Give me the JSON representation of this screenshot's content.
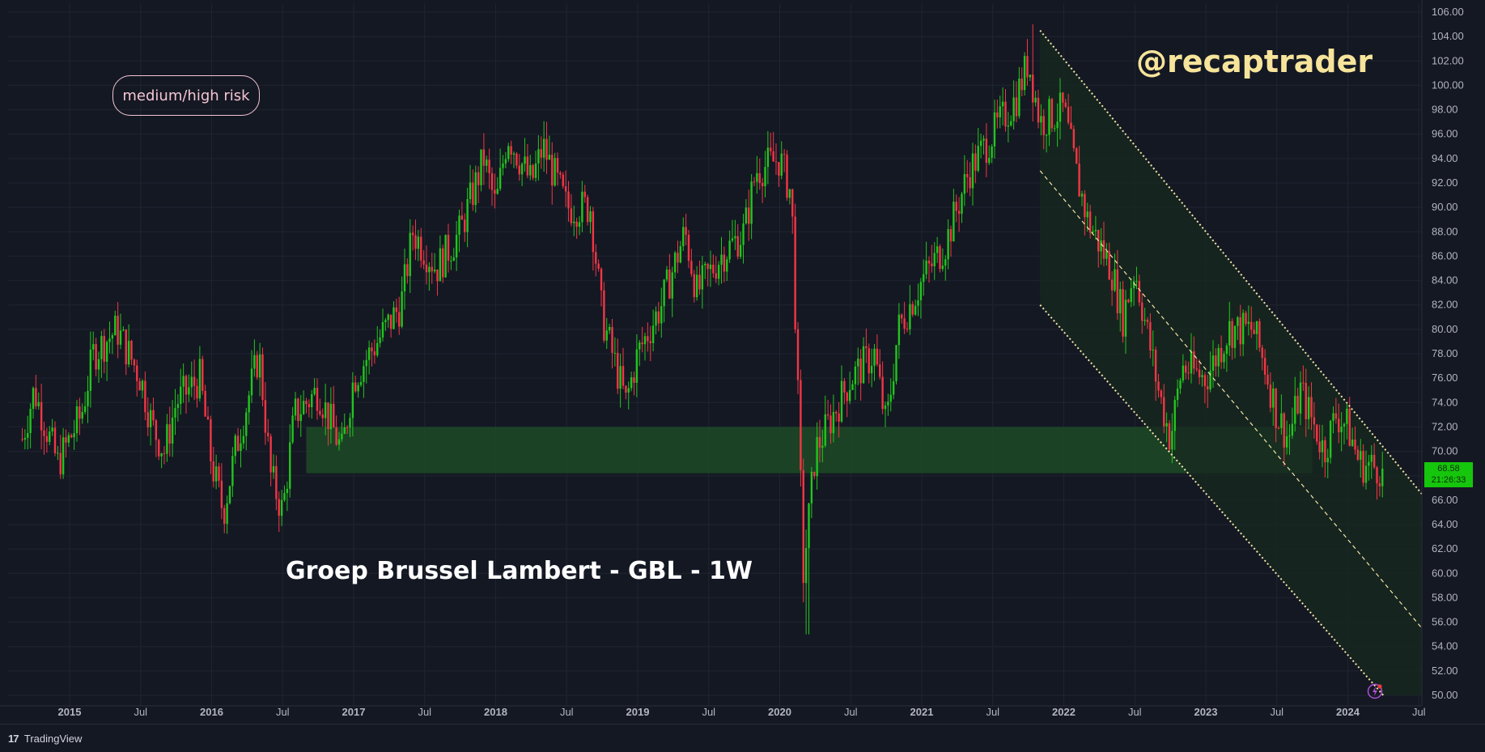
{
  "chart_data": {
    "type": "candlestick",
    "title": "Groep Brussel Lambert - GBL - 1W",
    "symbol": "GBL",
    "interval": "1W",
    "xlabel": "",
    "ylabel": "",
    "ylim": [
      50,
      106
    ],
    "xlim": [
      "2014-09",
      "2024-07"
    ],
    "y_ticks": [
      "106.00",
      "104.00",
      "102.00",
      "100.00",
      "98.00",
      "96.00",
      "94.00",
      "92.00",
      "90.00",
      "88.00",
      "86.00",
      "84.00",
      "82.00",
      "80.00",
      "78.00",
      "76.00",
      "74.00",
      "72.00",
      "70.00",
      "68.00",
      "66.00",
      "64.00",
      "62.00",
      "60.00",
      "58.00",
      "56.00",
      "54.00",
      "52.00",
      "50.00"
    ],
    "x_ticks": [
      {
        "label": "2015",
        "date": "2015-01",
        "bold": true
      },
      {
        "label": "Jul",
        "date": "2015-07",
        "bold": false
      },
      {
        "label": "2016",
        "date": "2016-01",
        "bold": true
      },
      {
        "label": "Jul",
        "date": "2016-07",
        "bold": false
      },
      {
        "label": "2017",
        "date": "2017-01",
        "bold": true
      },
      {
        "label": "Jul",
        "date": "2017-07",
        "bold": false
      },
      {
        "label": "2018",
        "date": "2018-01",
        "bold": true
      },
      {
        "label": "Jul",
        "date": "2018-07",
        "bold": false
      },
      {
        "label": "2019",
        "date": "2019-01",
        "bold": true
      },
      {
        "label": "Jul",
        "date": "2019-07",
        "bold": false
      },
      {
        "label": "2020",
        "date": "2020-01",
        "bold": true
      },
      {
        "label": "Jul",
        "date": "2020-07",
        "bold": false
      },
      {
        "label": "2021",
        "date": "2021-01",
        "bold": true
      },
      {
        "label": "Jul",
        "date": "2021-07",
        "bold": false
      },
      {
        "label": "2022",
        "date": "2022-01",
        "bold": true
      },
      {
        "label": "Jul",
        "date": "2022-07",
        "bold": false
      },
      {
        "label": "2023",
        "date": "2023-01",
        "bold": true
      },
      {
        "label": "Jul",
        "date": "2023-07",
        "bold": false
      },
      {
        "label": "2024",
        "date": "2024-01",
        "bold": true
      },
      {
        "label": "Jul",
        "date": "2024-07",
        "bold": false
      }
    ],
    "price_path": [
      [
        "2014-09",
        71
      ],
      [
        "2014-10",
        75
      ],
      [
        "2014-12",
        69
      ],
      [
        "2015-02",
        73
      ],
      [
        "2015-03",
        78
      ],
      [
        "2015-05",
        80
      ],
      [
        "2015-07",
        76
      ],
      [
        "2015-08",
        72
      ],
      [
        "2015-09",
        70
      ],
      [
        "2015-10",
        74
      ],
      [
        "2015-12",
        76
      ],
      [
        "2016-01",
        69
      ],
      [
        "2016-02",
        65
      ],
      [
        "2016-03",
        70
      ],
      [
        "2016-05",
        78
      ],
      [
        "2016-06",
        68
      ],
      [
        "2016-07",
        65
      ],
      [
        "2016-08",
        73
      ],
      [
        "2016-10",
        75
      ],
      [
        "2016-12",
        70
      ],
      [
        "2017-01",
        76
      ],
      [
        "2017-03",
        79
      ],
      [
        "2017-05",
        82
      ],
      [
        "2017-06",
        88
      ],
      [
        "2017-08",
        85
      ],
      [
        "2017-10",
        88
      ],
      [
        "2017-12",
        94
      ],
      [
        "2018-01",
        90
      ],
      [
        "2018-02",
        96
      ],
      [
        "2018-04",
        92
      ],
      [
        "2018-05",
        95
      ],
      [
        "2018-07",
        90
      ],
      [
        "2018-09",
        90
      ],
      [
        "2018-10",
        81
      ],
      [
        "2018-12",
        74
      ],
      [
        "2019-01",
        78
      ],
      [
        "2019-03",
        82
      ],
      [
        "2019-05",
        88
      ],
      [
        "2019-06",
        83
      ],
      [
        "2019-08",
        86
      ],
      [
        "2019-10",
        88
      ],
      [
        "2019-11",
        93
      ],
      [
        "2020-01",
        94
      ],
      [
        "2020-02",
        91
      ],
      [
        "2020-03",
        60
      ],
      [
        "2020-04",
        70
      ],
      [
        "2020-06",
        74
      ],
      [
        "2020-07",
        76
      ],
      [
        "2020-09",
        78
      ],
      [
        "2020-10",
        72
      ],
      [
        "2020-11",
        80
      ],
      [
        "2021-01",
        84
      ],
      [
        "2021-03",
        87
      ],
      [
        "2021-05",
        93
      ],
      [
        "2021-07",
        96
      ],
      [
        "2021-09",
        99
      ],
      [
        "2021-10",
        102
      ],
      [
        "2021-11",
        97
      ],
      [
        "2022-01",
        98
      ],
      [
        "2022-02",
        93
      ],
      [
        "2022-03",
        89
      ],
      [
        "2022-05",
        85
      ],
      [
        "2022-06",
        81
      ],
      [
        "2022-07",
        85
      ],
      [
        "2022-08",
        80
      ],
      [
        "2022-09",
        75
      ],
      [
        "2022-10",
        71
      ],
      [
        "2022-11",
        77
      ],
      [
        "2023-01",
        76
      ],
      [
        "2023-03",
        80
      ],
      [
        "2023-05",
        80
      ],
      [
        "2023-06",
        77
      ],
      [
        "2023-07",
        73
      ],
      [
        "2023-08",
        71
      ],
      [
        "2023-09",
        75
      ],
      [
        "2023-11",
        70
      ],
      [
        "2023-12",
        73
      ],
      [
        "2024-01",
        72
      ],
      [
        "2024-02",
        69
      ],
      [
        "2024-04",
        68.58
      ]
    ],
    "spikes": [
      {
        "date": "2020-03",
        "low": 55
      },
      {
        "date": "2021-10",
        "high": 105
      }
    ],
    "support_zone": {
      "from": "2016-09",
      "to": "2023-10",
      "low": 68.2,
      "high": 72
    }
  },
  "annotations": {
    "risk_label": "medium/high risk",
    "handle": "@recaptrader",
    "title": "Groep Brussel Lambert - GBL - 1W"
  },
  "channel": {
    "upper": {
      "start": [
        "2021-11",
        104.5
      ],
      "end": [
        "2024-06",
        66.5
      ]
    },
    "middle": {
      "start": [
        "2021-11",
        93
      ],
      "end": [
        "2024-06",
        55.5
      ]
    },
    "lower": {
      "start": [
        "2021-11",
        82
      ],
      "end": [
        "2024-04",
        50
      ]
    }
  },
  "price_badge": {
    "price": "68.58",
    "countdown": "21:26:33"
  },
  "branding": {
    "mark": "17",
    "name": "TradingView"
  },
  "colors": {
    "background": "#141823",
    "grid": "#1f2430",
    "up_candle": "#22c51e",
    "down_candle": "#f23645",
    "support_zone": "#1c4a24",
    "channel_fill": "#17281f",
    "channel_line": "#f5e6a8",
    "badge": "#16c60c"
  },
  "alert_icon": "lightning-alert-icon"
}
